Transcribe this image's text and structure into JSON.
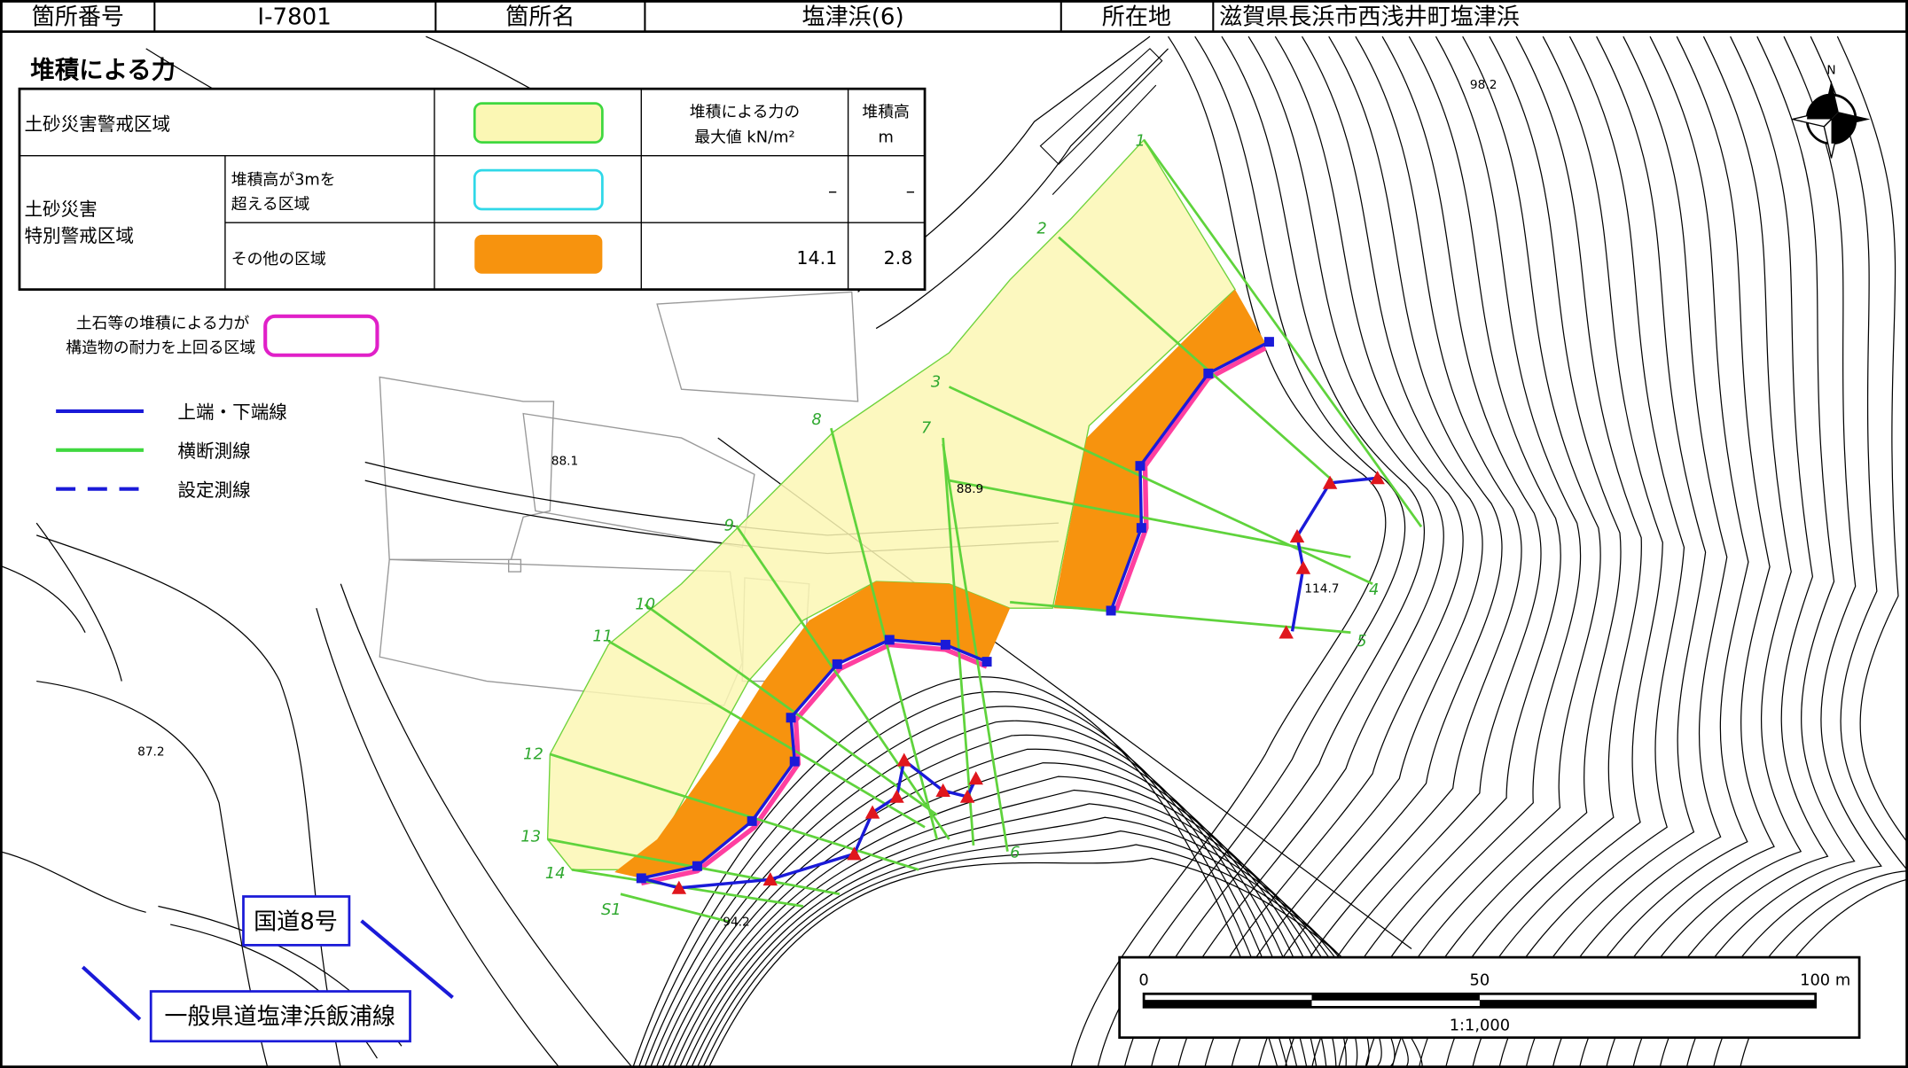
{
  "header": {
    "cells": [
      "箇所番号",
      "Ⅰ-7801",
      "箇所名",
      "塩津浜(6)",
      "所在地",
      "滋賀県長浜市西浅井町塩津浜"
    ]
  },
  "legend": {
    "title": "堆積による力",
    "col_force": [
      "堆積による力の",
      "最大値 kN/m²"
    ],
    "col_height": [
      "堆積高",
      "m"
    ],
    "warning_zone": "土砂災害警戒区域",
    "special_zone": [
      "土砂災害",
      "特別警戒区域"
    ],
    "over3m": {
      "label": [
        "堆積高が3mを",
        "超える区域"
      ],
      "force": "–",
      "height": "–"
    },
    "other": {
      "label": "その他の区域",
      "force": 14.1,
      "height": 2.8
    },
    "exceed": [
      "土石等の堆積による力が",
      "構造物の耐力を上回る区域"
    ],
    "lines": [
      "上端・下端線",
      "横断測線",
      "設定測線"
    ]
  },
  "map": {
    "sections": [
      "1",
      "2",
      "3",
      "4",
      "5",
      "6",
      "7",
      "8",
      "9",
      "10",
      "11",
      "12",
      "13",
      "14",
      "S1"
    ],
    "elevations": [
      "98.2",
      "88.1",
      "88.9",
      "114.7",
      "87.2",
      "94.2"
    ],
    "roads": [
      "国道8号",
      "一般県道塩津浜飯浦線"
    ],
    "north": "N",
    "scale": {
      "ticks": [
        "0",
        "50",
        "100 m"
      ],
      "ratio": "1:1,000"
    }
  }
}
